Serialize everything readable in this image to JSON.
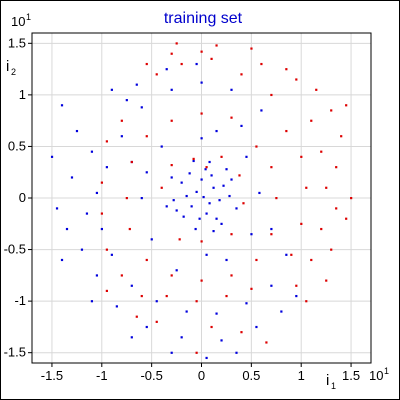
{
  "chart_data": {
    "type": "scatter",
    "title": "training set",
    "xlabel": "i",
    "xlabel_sub": "1",
    "ylabel": "i",
    "ylabel_sub": "2",
    "x_exponent": "10",
    "x_exponent_power": "1",
    "y_exponent": "10",
    "y_exponent_power": "1",
    "xlim": [
      -1.7,
      1.7
    ],
    "ylim": [
      -1.6,
      1.6
    ],
    "x_ticks": [
      -1.5,
      -1,
      -0.5,
      0,
      0.5,
      1,
      1.5
    ],
    "x_tick_labels": [
      "-1.5",
      "-1",
      "-0.5",
      "0",
      "0.5",
      "1",
      "1.5"
    ],
    "y_ticks": [
      1.5,
      1,
      0.5,
      0,
      -0.5,
      -1,
      -1.5
    ],
    "y_tick_labels": [
      "1.5",
      "1",
      "0.5",
      "0",
      "-0.5",
      "-1",
      "-1.5"
    ],
    "grid": true,
    "colors": {
      "title": "#0000cc",
      "blue_class": "#0000dd",
      "red_class": "#dd0000",
      "grid": "#d8d8d8",
      "axes": "#000000"
    },
    "series": [
      {
        "color": "blue",
        "points": [
          [
            0.02,
            0.01
          ],
          [
            0.08,
            -0.05
          ],
          [
            -0.05,
            0.06
          ],
          [
            0.12,
            0.1
          ],
          [
            -0.1,
            -0.08
          ],
          [
            0.05,
            -0.15
          ],
          [
            -0.15,
            0.02
          ],
          [
            0.18,
            -0.02
          ],
          [
            0.0,
            0.18
          ],
          [
            -0.02,
            -0.2
          ],
          [
            0.22,
            0.12
          ],
          [
            -0.2,
            0.15
          ],
          [
            0.15,
            -0.2
          ],
          [
            -0.18,
            -0.18
          ],
          [
            0.28,
            0.02
          ],
          [
            -0.28,
            -0.02
          ],
          [
            0.04,
            0.28
          ],
          [
            -0.06,
            -0.3
          ],
          [
            0.1,
            0.22
          ],
          [
            -0.12,
            0.24
          ],
          [
            0.2,
            -0.25
          ],
          [
            -0.25,
            -0.12
          ],
          [
            0.3,
            0.18
          ],
          [
            -0.3,
            0.2
          ],
          [
            0.12,
            -0.32
          ],
          [
            0.35,
            -0.1
          ],
          [
            -0.35,
            -0.08
          ],
          [
            0.08,
            0.35
          ],
          [
            -0.08,
            0.36
          ],
          [
            0.25,
            0.28
          ],
          [
            -0.8,
            0.6
          ],
          [
            -0.95,
            0.3
          ],
          [
            -1.05,
            0.05
          ],
          [
            -1.0,
            -0.3
          ],
          [
            -0.9,
            -0.55
          ],
          [
            -0.7,
            -0.85
          ],
          [
            -0.45,
            -1.0
          ],
          [
            -0.15,
            -1.1
          ],
          [
            0.15,
            -1.12
          ],
          [
            0.45,
            -1.02
          ],
          [
            0.7,
            -0.85
          ],
          [
            0.85,
            -0.55
          ],
          [
            0.6,
            0.85
          ],
          [
            0.3,
            1.05
          ],
          [
            0.0,
            1.12
          ],
          [
            -0.3,
            1.05
          ],
          [
            -0.6,
            0.88
          ],
          [
            -0.75,
            0.95
          ],
          [
            -1.1,
            0.45
          ],
          [
            -1.15,
            -0.15
          ],
          [
            -1.2,
            -0.5
          ],
          [
            -1.05,
            -0.75
          ],
          [
            -0.85,
            -1.05
          ],
          [
            -0.55,
            -1.25
          ],
          [
            -0.2,
            -1.35
          ],
          [
            0.2,
            -1.38
          ],
          [
            0.55,
            -1.25
          ],
          [
            0.8,
            -1.1
          ],
          [
            -0.35,
            1.25
          ],
          [
            -0.05,
            1.3
          ],
          [
            -0.65,
            1.1
          ],
          [
            -1.3,
            0.2
          ],
          [
            -1.35,
            -0.3
          ],
          [
            -1.25,
            0.65
          ],
          [
            -0.9,
            1.05
          ],
          [
            0.25,
            -0.6
          ],
          [
            -0.55,
            0.25
          ],
          [
            -0.5,
            -0.4
          ],
          [
            0.45,
            0.4
          ],
          [
            -0.4,
            0.5
          ],
          [
            0.5,
            -0.35
          ],
          [
            0.05,
            -0.55
          ],
          [
            -0.6,
            0.0
          ],
          [
            0.0,
            0.58
          ],
          [
            0.58,
            0.05
          ],
          [
            -1.45,
            -0.1
          ],
          [
            -1.5,
            0.4
          ],
          [
            -1.4,
            -0.6
          ],
          [
            -0.3,
            -1.5
          ],
          [
            0.05,
            -1.55
          ],
          [
            0.35,
            -1.5
          ],
          [
            -0.7,
            -1.35
          ],
          [
            0.95,
            -0.95
          ],
          [
            -1.1,
            -1.0
          ],
          [
            -1.4,
            0.9
          ],
          [
            0.15,
            0.65
          ],
          [
            -0.7,
            0.35
          ],
          [
            0.7,
            -0.3
          ],
          [
            -0.25,
            -0.7
          ],
          [
            0.4,
            0.7
          ]
        ]
      },
      {
        "color": "red",
        "points": [
          [
            0.05,
            0.3
          ],
          [
            -0.08,
            0.38
          ],
          [
            0.2,
            0.4
          ],
          [
            -0.3,
            0.32
          ],
          [
            0.38,
            0.22
          ],
          [
            0.42,
            -0.05
          ],
          [
            -0.4,
            0.1
          ],
          [
            0.3,
            -0.35
          ],
          [
            -0.22,
            -0.4
          ],
          [
            0.0,
            -0.42
          ],
          [
            0.55,
            0.5
          ],
          [
            0.7,
            0.3
          ],
          [
            0.75,
            0.0
          ],
          [
            0.7,
            -0.35
          ],
          [
            0.55,
            -0.6
          ],
          [
            0.3,
            -0.75
          ],
          [
            0.0,
            -0.8
          ],
          [
            -0.3,
            -0.75
          ],
          [
            -0.55,
            -0.6
          ],
          [
            -0.72,
            -0.3
          ],
          [
            -0.75,
            0.0
          ],
          [
            -0.7,
            0.35
          ],
          [
            -0.55,
            0.6
          ],
          [
            -0.3,
            0.75
          ],
          [
            0.0,
            0.82
          ],
          [
            0.3,
            0.78
          ],
          [
            0.85,
            0.65
          ],
          [
            1.0,
            0.4
          ],
          [
            1.05,
            0.1
          ],
          [
            1.0,
            -0.25
          ],
          [
            0.9,
            -0.55
          ],
          [
            1.1,
            0.75
          ],
          [
            1.2,
            0.45
          ],
          [
            1.25,
            0.1
          ],
          [
            1.2,
            -0.3
          ],
          [
            1.1,
            -0.6
          ],
          [
            0.95,
            -0.85
          ],
          [
            0.7,
            1.0
          ],
          [
            0.4,
            1.2
          ],
          [
            0.1,
            1.35
          ],
          [
            -0.2,
            1.3
          ],
          [
            -0.45,
            1.2
          ],
          [
            0.15,
            1.48
          ],
          [
            0.0,
            1.42
          ],
          [
            -0.3,
            1.4
          ],
          [
            1.35,
            0.3
          ],
          [
            1.35,
            -0.1
          ],
          [
            1.3,
            -0.5
          ],
          [
            1.45,
            -0.2
          ],
          [
            1.4,
            0.6
          ],
          [
            1.3,
            0.85
          ],
          [
            1.15,
            1.05
          ],
          [
            0.95,
            1.15
          ],
          [
            -0.6,
            -0.95
          ],
          [
            -0.35,
            -0.95
          ],
          [
            -0.05,
            -1.0
          ],
          [
            0.25,
            -0.95
          ],
          [
            0.5,
            -0.88
          ],
          [
            -0.8,
            -0.75
          ],
          [
            -0.95,
            -0.5
          ],
          [
            -0.95,
            0.55
          ],
          [
            -0.8,
            0.75
          ],
          [
            -1.0,
            0.15
          ],
          [
            -1.0,
            -0.15
          ],
          [
            -0.45,
            -1.2
          ],
          [
            0.1,
            -1.25
          ],
          [
            0.4,
            -1.3
          ],
          [
            -0.65,
            -1.15
          ],
          [
            -0.95,
            -0.9
          ],
          [
            0.65,
            -1.4
          ],
          [
            -0.05,
            -1.5
          ],
          [
            1.05,
            -1.0
          ],
          [
            1.25,
            -0.8
          ],
          [
            0.6,
            1.3
          ],
          [
            0.85,
            1.25
          ],
          [
            -0.25,
            1.5
          ],
          [
            0.5,
            1.45
          ],
          [
            -0.55,
            1.3
          ],
          [
            1.45,
            0.9
          ],
          [
            1.5,
            0.0
          ]
        ]
      }
    ]
  }
}
